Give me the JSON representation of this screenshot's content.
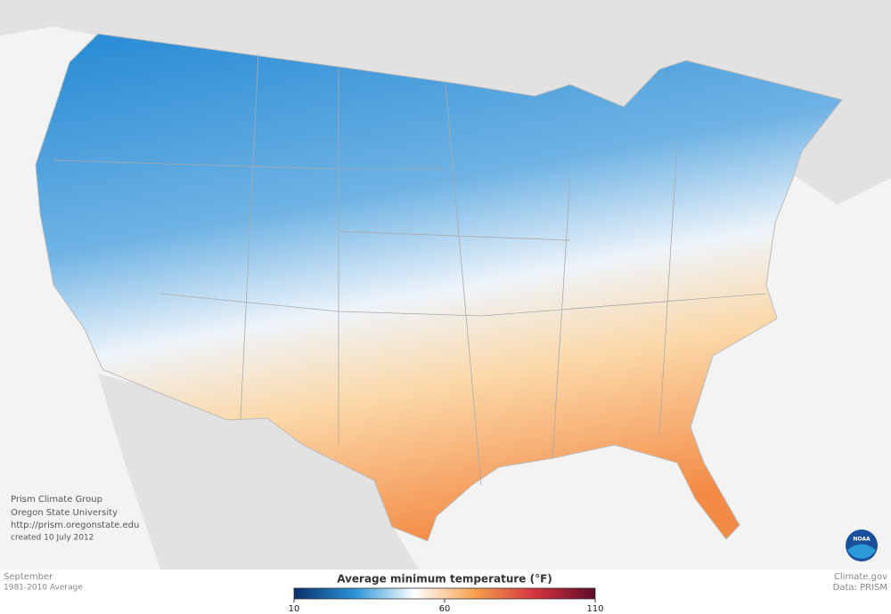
{
  "credits": {
    "lines": [
      "Prism Climate Group",
      "Oregon State University",
      "http://prism.oregonstate.edu",
      "created 10 July 2012"
    ]
  },
  "period": {
    "month": "September",
    "average": "1981-2010 Average"
  },
  "source": {
    "site": "Climate.gov",
    "data": "Data: PRISM"
  },
  "logo": "NOAA",
  "legend": {
    "title": "Average minimum temperature (°F)",
    "lim": [
      10,
      110
    ],
    "ticks": [
      10,
      60,
      110
    ],
    "colors": [
      "#0a2f6b",
      "#2b93d6",
      "#ffffff",
      "#f6a04e",
      "#d2343f",
      "#5e0b2a"
    ]
  }
}
